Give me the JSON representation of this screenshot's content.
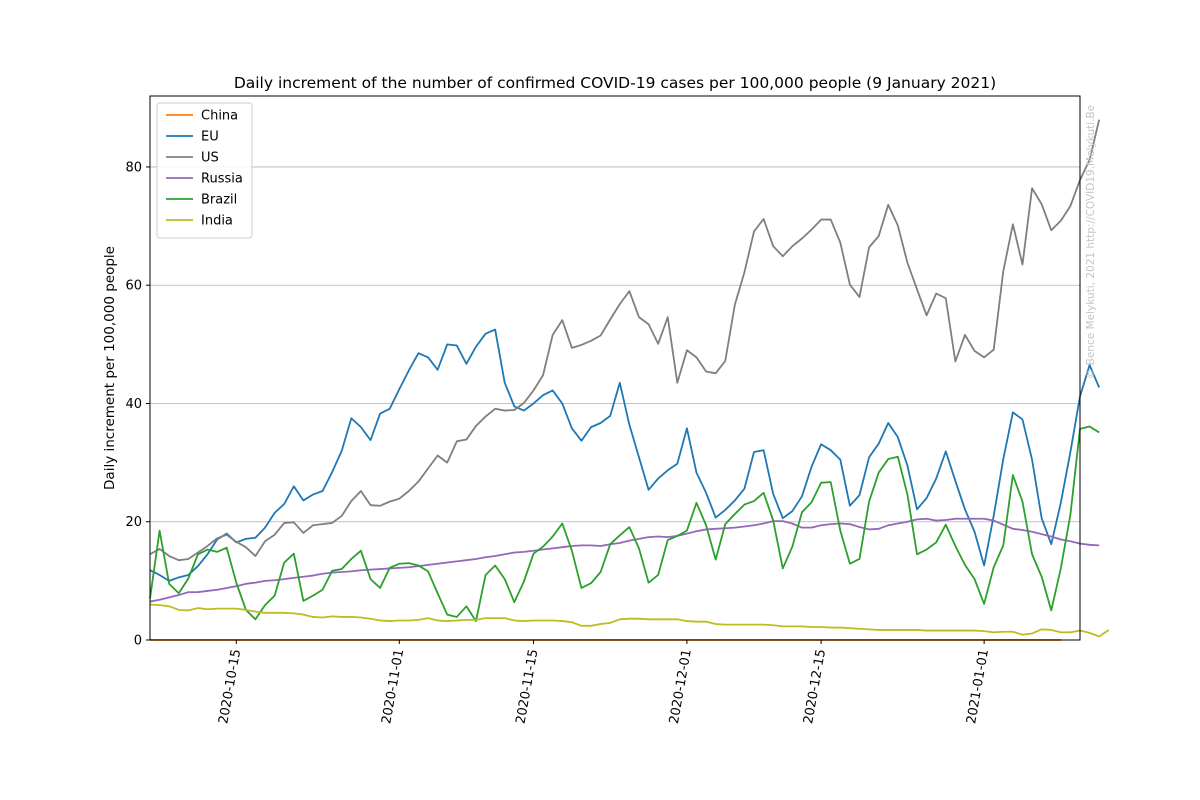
{
  "chart_data": {
    "type": "line",
    "title": "Daily increment of the number of confirmed COVID-19 cases per 100,000 people (9 January 2021)",
    "ylabel": "Daily increment per 100,000 people",
    "xlabel": "",
    "x_start": "2020-10-06",
    "x_end": "2021-01-09",
    "xlim": [
      "2020-10-06",
      "2021-01-11"
    ],
    "ylim": [
      0,
      92
    ],
    "x_ticks": [
      {
        "date": "2020-10-15",
        "label": "2020-10-15"
      },
      {
        "date": "2020-11-01",
        "label": "2020-11-01"
      },
      {
        "date": "2020-11-15",
        "label": "2020-11-15"
      },
      {
        "date": "2020-12-01",
        "label": "2020-12-01"
      },
      {
        "date": "2020-12-15",
        "label": "2020-12-15"
      },
      {
        "date": "2021-01-01",
        "label": "2021-01-01"
      }
    ],
    "y_ticks": [
      0,
      20,
      40,
      60,
      80
    ],
    "grid": "horizontal",
    "legend_position": "top-left",
    "copyright": "© Bence Melykuti, 2021  http://COVID19.Melykuti.Be",
    "series": [
      {
        "name": "China",
        "color": "#ff7f0e",
        "values": [
          0.01,
          0.01,
          0.01,
          0.01,
          0.01,
          0.01,
          0.01,
          0.01,
          0.01,
          0.01,
          0.01,
          0.01,
          0.01,
          0.01,
          0.01,
          0.01,
          0.01,
          0.01,
          0.01,
          0.01,
          0.01,
          0.01,
          0.01,
          0.01,
          0.01,
          0.01,
          0.01,
          0.01,
          0.01,
          0.01,
          0.01,
          0.01,
          0.01,
          0.01,
          0.01,
          0.01,
          0.01,
          0.01,
          0.01,
          0.01,
          0.01,
          0.01,
          0.01,
          0.01,
          0.01,
          0.01,
          0.01,
          0.01,
          0.01,
          0.01,
          0.01,
          0.01,
          0.01,
          0.01,
          0.01,
          0.01,
          0.01,
          0.01,
          0.01,
          0.01,
          0.01,
          0.01,
          0.01,
          0.01,
          0.01,
          0.01,
          0.01,
          0.01,
          0.01,
          0.01,
          0.01,
          0.01,
          0.01,
          0.01,
          0.01,
          0.01,
          0.01,
          0.01,
          0.01,
          0.01,
          0.01,
          0.01,
          0.01,
          0.01,
          0.01,
          0.01,
          0.01,
          0.01,
          0.01,
          0.01,
          0.01,
          0.01,
          0.01,
          0.01,
          0.01,
          0.01
        ]
      },
      {
        "name": "EU",
        "color": "#1f77b4",
        "values": [
          11.8,
          11.0,
          10.0,
          10.6,
          11.0,
          12.5,
          14.5,
          17.0,
          18.0,
          16.5,
          17.1,
          17.3,
          19.0,
          21.5,
          23.0,
          26.0,
          23.6,
          24.6,
          25.2,
          28.4,
          32.0,
          37.5,
          36.0,
          33.8,
          38.3,
          39.1,
          42.4,
          45.6,
          48.5,
          47.8,
          45.7,
          50.0,
          49.8,
          46.7,
          49.6,
          51.8,
          52.5,
          43.5,
          39.5,
          38.8,
          40.0,
          41.4,
          42.2,
          40.0,
          35.8,
          33.7,
          36.0,
          36.7,
          37.9,
          43.5,
          36.4,
          30.9,
          25.4,
          27.3,
          28.7,
          29.8,
          35.8,
          28.3,
          24.9,
          20.7,
          22.0,
          23.6,
          25.6,
          31.8,
          32.1,
          24.7,
          20.6,
          21.8,
          24.3,
          29.3,
          33.1,
          32.1,
          30.5,
          22.7,
          24.5,
          30.9,
          33.2,
          36.7,
          34.3,
          29.5,
          22.1,
          24.0,
          27.3,
          31.9,
          26.9,
          22.1,
          18.3,
          12.6,
          21.0,
          30.6,
          38.5,
          37.3,
          30.5,
          20.6,
          16.2,
          23.2,
          31.8,
          41.2,
          46.5,
          42.7
        ]
      },
      {
        "name": "US",
        "color": "#7f7f7f",
        "values": [
          14.5,
          15.4,
          14.2,
          13.5,
          13.7,
          14.8,
          15.9,
          17.2,
          17.8,
          16.6,
          15.7,
          14.2,
          16.7,
          17.8,
          19.8,
          19.9,
          18.1,
          19.4,
          19.6,
          19.8,
          21.0,
          23.5,
          25.2,
          22.8,
          22.7,
          23.4,
          23.9,
          25.2,
          26.8,
          29.0,
          31.2,
          30.0,
          33.6,
          33.9,
          36.2,
          37.8,
          39.1,
          38.8,
          38.9,
          40.1,
          42.2,
          44.8,
          51.6,
          54.1,
          49.4,
          49.9,
          50.6,
          51.5,
          54.2,
          56.8,
          59.0,
          54.6,
          53.4,
          50.1,
          54.6,
          43.5,
          49.0,
          47.8,
          45.4,
          45.1,
          47.2,
          56.7,
          62.2,
          69.1,
          71.2,
          66.6,
          64.9,
          66.6,
          67.9,
          69.4,
          71.1,
          71.1,
          67.2,
          60.1,
          58.0,
          66.4,
          68.3,
          73.6,
          70.1,
          63.8,
          59.3,
          54.9,
          58.6,
          57.8,
          47.1,
          51.6,
          48.9,
          47.8,
          49.1,
          62.4,
          70.3,
          63.5,
          76.4,
          73.7,
          69.3,
          70.9,
          73.4,
          77.8,
          81.2,
          88.0
        ]
      },
      {
        "name": "Russia",
        "color": "#9467bd",
        "values": [
          6.5,
          6.8,
          7.2,
          7.6,
          8.1,
          8.1,
          8.3,
          8.5,
          8.8,
          9.1,
          9.5,
          9.7,
          10.0,
          10.1,
          10.3,
          10.5,
          10.7,
          10.9,
          11.2,
          11.4,
          11.5,
          11.6,
          11.8,
          11.9,
          12.0,
          12.1,
          12.2,
          12.3,
          12.5,
          12.7,
          12.9,
          13.1,
          13.3,
          13.5,
          13.7,
          14.0,
          14.2,
          14.5,
          14.8,
          14.9,
          15.1,
          15.3,
          15.5,
          15.7,
          15.9,
          16.0,
          16.0,
          15.9,
          16.2,
          16.4,
          16.8,
          17.1,
          17.4,
          17.5,
          17.4,
          17.6,
          18.0,
          18.4,
          18.7,
          18.8,
          18.9,
          19.0,
          19.2,
          19.4,
          19.7,
          20.1,
          20.1,
          19.7,
          19.0,
          19.0,
          19.4,
          19.6,
          19.7,
          19.6,
          19.1,
          18.7,
          18.8,
          19.4,
          19.7,
          20.0,
          20.4,
          20.5,
          20.2,
          20.3,
          20.5,
          20.5,
          20.5,
          20.5,
          20.2,
          19.5,
          18.8,
          18.6,
          18.3,
          17.9,
          17.5,
          17.0,
          16.7,
          16.3,
          16.1,
          16.0
        ]
      },
      {
        "name": "Brazil",
        "color": "#2ca02c",
        "values": [
          7.0,
          18.5,
          9.5,
          7.9,
          10.4,
          14.5,
          15.3,
          14.9,
          15.6,
          9.7,
          5.1,
          3.5,
          5.9,
          7.5,
          13.1,
          14.6,
          6.6,
          7.5,
          8.5,
          11.7,
          12.0,
          13.7,
          15.1,
          10.3,
          8.8,
          12.2,
          12.9,
          13.0,
          12.6,
          11.6,
          7.9,
          4.3,
          3.9,
          5.7,
          3.2,
          11.0,
          12.6,
          10.3,
          6.4,
          9.9,
          14.6,
          15.8,
          17.5,
          19.7,
          15.1,
          8.8,
          9.6,
          11.5,
          16.2,
          17.7,
          19.1,
          15.5,
          9.7,
          11.0,
          16.9,
          17.6,
          18.5,
          23.2,
          19.4,
          13.6,
          19.6,
          21.3,
          22.9,
          23.5,
          24.9,
          20.2,
          12.1,
          15.8,
          21.6,
          23.3,
          26.6,
          26.7,
          18.5,
          12.9,
          13.7,
          23.4,
          28.3,
          30.6,
          31.0,
          24.6,
          14.5,
          15.3,
          16.5,
          19.5,
          15.9,
          12.7,
          10.3,
          6.1,
          12.3,
          16.0,
          27.9,
          23.4,
          14.5,
          10.7,
          5.0,
          12.1,
          21.2,
          35.7,
          36.1,
          35.1
        ]
      },
      {
        "name": "India",
        "color": "#bcbd22",
        "values": [
          6.0,
          5.9,
          5.7,
          5.1,
          5.0,
          5.4,
          5.2,
          5.3,
          5.3,
          5.3,
          5.1,
          4.8,
          4.6,
          4.6,
          4.6,
          4.5,
          4.3,
          3.9,
          3.8,
          4.0,
          3.9,
          3.9,
          3.8,
          3.6,
          3.3,
          3.2,
          3.3,
          3.3,
          3.4,
          3.7,
          3.3,
          3.2,
          3.3,
          3.4,
          3.4,
          3.7,
          3.7,
          3.7,
          3.3,
          3.2,
          3.3,
          3.3,
          3.3,
          3.2,
          3.0,
          2.4,
          2.4,
          2.7,
          2.9,
          3.5,
          3.6,
          3.6,
          3.5,
          3.5,
          3.5,
          3.5,
          3.2,
          3.1,
          3.1,
          2.7,
          2.6,
          2.6,
          2.6,
          2.6,
          2.6,
          2.5,
          2.3,
          2.3,
          2.3,
          2.2,
          2.2,
          2.1,
          2.1,
          2.0,
          1.9,
          1.8,
          1.7,
          1.7,
          1.7,
          1.7,
          1.7,
          1.6,
          1.6,
          1.6,
          1.6,
          1.6,
          1.6,
          1.5,
          1.3,
          1.4,
          1.4,
          0.9,
          1.1,
          1.8,
          1.7,
          1.3,
          1.3,
          1.6,
          1.2,
          0.6,
          1.7
        ]
      }
    ]
  }
}
